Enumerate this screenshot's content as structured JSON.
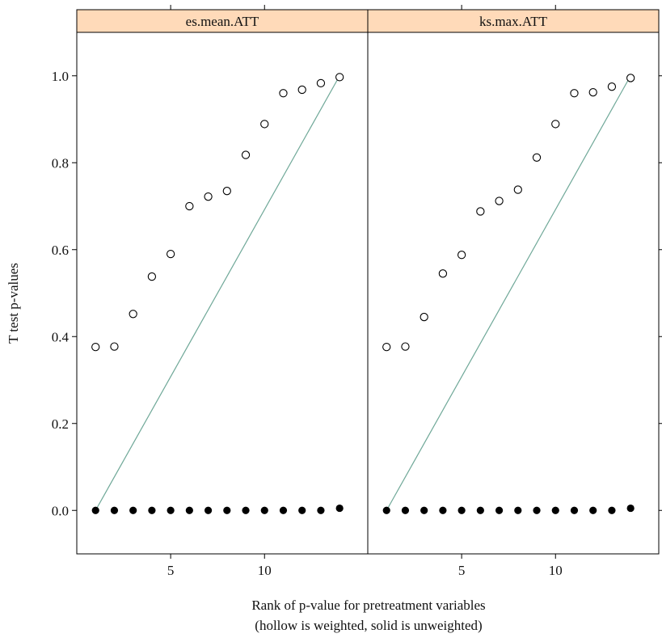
{
  "colors": {
    "strip_fill": "#FFDAB9",
    "line": "#6FA898",
    "points": "#000000",
    "frame": "#000000"
  },
  "axes": {
    "ylabel": "T test p-values",
    "xlabel_line1": "Rank of p-value for pretreatment variables",
    "xlabel_line2": "(hollow is weighted, solid is unweighted)"
  },
  "chart_data": {
    "type": "scatter",
    "layout": "two facet panels side by side, shared axes",
    "xlim": [
      0,
      15.5
    ],
    "ylim": [
      -0.1,
      1.1
    ],
    "x_ticks": [
      5,
      10
    ],
    "y_ticks": [
      0.0,
      0.2,
      0.4,
      0.6,
      0.8,
      1.0
    ],
    "y_tick_labels": [
      "0.0",
      "0.2",
      "0.4",
      "0.6",
      "0.8",
      "1.0"
    ],
    "grid": false,
    "panels": [
      {
        "title": "es.mean.ATT",
        "reference_line": {
          "x": [
            1,
            14
          ],
          "y": [
            0.0,
            1.0
          ]
        },
        "series": [
          {
            "style": "hollow",
            "x": [
              1,
              2,
              3,
              4,
              5,
              6,
              7,
              8,
              9,
              10,
              11,
              12,
              13,
              14
            ],
            "y": [
              0.376,
              0.377,
              0.452,
              0.538,
              0.59,
              0.7,
              0.722,
              0.735,
              0.818,
              0.889,
              0.96,
              0.968,
              0.983,
              0.997
            ]
          },
          {
            "style": "solid",
            "x": [
              1,
              2,
              3,
              4,
              5,
              6,
              7,
              8,
              9,
              10,
              11,
              12,
              13,
              14
            ],
            "y": [
              0.0,
              0.0,
              0.0,
              0.0,
              0.0,
              0.0,
              0.0,
              0.0,
              0.0,
              0.0,
              0.0,
              0.0,
              0.0,
              0.005
            ]
          }
        ]
      },
      {
        "title": "ks.max.ATT",
        "reference_line": {
          "x": [
            1,
            14
          ],
          "y": [
            0.0,
            1.0
          ]
        },
        "series": [
          {
            "style": "hollow",
            "x": [
              1,
              2,
              3,
              4,
              5,
              6,
              7,
              8,
              9,
              10,
              11,
              12,
              13,
              14
            ],
            "y": [
              0.376,
              0.377,
              0.445,
              0.545,
              0.588,
              0.688,
              0.712,
              0.738,
              0.812,
              0.889,
              0.96,
              0.962,
              0.975,
              0.995
            ]
          },
          {
            "style": "solid",
            "x": [
              1,
              2,
              3,
              4,
              5,
              6,
              7,
              8,
              9,
              10,
              11,
              12,
              13,
              14
            ],
            "y": [
              0.0,
              0.0,
              0.0,
              0.0,
              0.0,
              0.0,
              0.0,
              0.0,
              0.0,
              0.0,
              0.0,
              0.0,
              0.0,
              0.005
            ]
          }
        ]
      }
    ]
  }
}
